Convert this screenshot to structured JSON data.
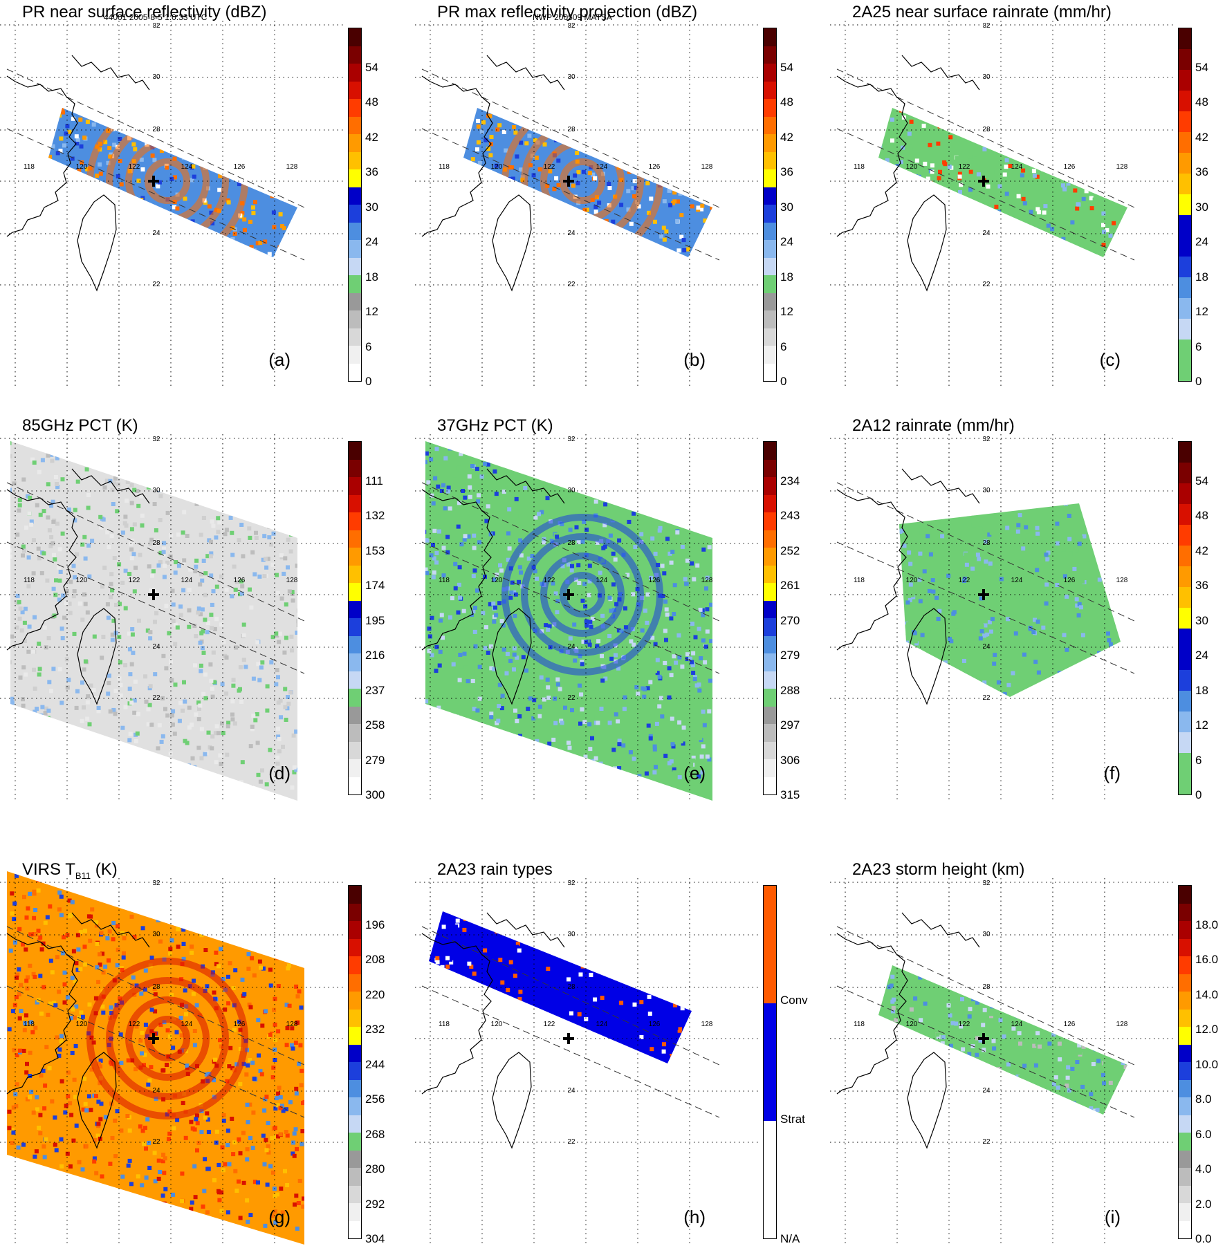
{
  "header": {
    "left": "44001 2005-8-5 1:0:33 UTC",
    "center": "NWP 200509 MATSA"
  },
  "map": {
    "lon_labels": [
      "118",
      "120",
      "122",
      "124",
      "126",
      "128"
    ],
    "lat_labels": [
      "32",
      "30",
      "28",
      "24",
      "22"
    ],
    "center_marker": "cross-icon"
  },
  "panels": [
    {
      "id": "a",
      "title": "PR near surface reflectivity (dBZ)",
      "label": "(a)",
      "ticks": [
        "0",
        "6",
        "12",
        "18",
        "24",
        "30",
        "36",
        "42",
        "48",
        "54"
      ],
      "colors": [
        "#ffffff",
        "#f0f0f0",
        "#d8d8d8",
        "#bcbcbc",
        "#999999",
        "#6fcf74",
        "#c6d8f4",
        "#8ab8ee",
        "#4d8ee0",
        "#1c3fdc",
        "#0000c8",
        "#ffff00",
        "#ffc000",
        "#ff9a00",
        "#ff6e00",
        "#ff3c00",
        "#d81000",
        "#aa0000",
        "#7a0000",
        "#4a0000"
      ]
    },
    {
      "id": "b",
      "title": "PR max reflectivity projection (dBZ)",
      "label": "(b)",
      "ticks": [
        "0",
        "6",
        "12",
        "18",
        "24",
        "30",
        "36",
        "42",
        "48",
        "54"
      ],
      "colors": [
        "#ffffff",
        "#f0f0f0",
        "#d8d8d8",
        "#bcbcbc",
        "#999999",
        "#6fcf74",
        "#c6d8f4",
        "#8ab8ee",
        "#4d8ee0",
        "#1c3fdc",
        "#0000c8",
        "#ffff00",
        "#ffc000",
        "#ff9a00",
        "#ff6e00",
        "#ff3c00",
        "#d81000",
        "#aa0000",
        "#7a0000",
        "#4a0000"
      ]
    },
    {
      "id": "c",
      "title": "2A25 near surface rainrate (mm/hr)",
      "label": "(c)",
      "ticks": [
        "0",
        "6",
        "12",
        "18",
        "24",
        "30",
        "36",
        "42",
        "48",
        "54"
      ],
      "colors": [
        "#6fcf74",
        "#6fcf74",
        "#c6d8f4",
        "#8ab8ee",
        "#4d8ee0",
        "#1c3fdc",
        "#0000c8",
        "#0000c8",
        "#ffff00",
        "#ffc000",
        "#ff9a00",
        "#ff6e00",
        "#ff3c00",
        "#d81000",
        "#aa0000",
        "#7a0000",
        "#4a0000"
      ]
    },
    {
      "id": "d",
      "title": "85GHz PCT (K)",
      "label": "(d)",
      "ticks": [
        "300",
        "279",
        "258",
        "237",
        "216",
        "195",
        "174",
        "153",
        "132",
        "111"
      ],
      "colors": [
        "#ffffff",
        "#f0f0f0",
        "#d8d8d8",
        "#bcbcbc",
        "#999999",
        "#6fcf74",
        "#c6d8f4",
        "#8ab8ee",
        "#4d8ee0",
        "#1c3fdc",
        "#0000c8",
        "#ffff00",
        "#ffc000",
        "#ff9a00",
        "#ff6e00",
        "#ff3c00",
        "#d81000",
        "#aa0000",
        "#7a0000",
        "#4a0000"
      ]
    },
    {
      "id": "e",
      "title": "37GHz PCT (K)",
      "label": "(e)",
      "ticks": [
        "315",
        "306",
        "297",
        "288",
        "279",
        "270",
        "261",
        "252",
        "243",
        "234"
      ],
      "colors": [
        "#ffffff",
        "#f0f0f0",
        "#d8d8d8",
        "#bcbcbc",
        "#999999",
        "#6fcf74",
        "#c6d8f4",
        "#8ab8ee",
        "#4d8ee0",
        "#1c3fdc",
        "#0000c8",
        "#ffff00",
        "#ffc000",
        "#ff9a00",
        "#ff6e00",
        "#ff3c00",
        "#d81000",
        "#aa0000",
        "#7a0000",
        "#4a0000"
      ]
    },
    {
      "id": "f",
      "title": "2A12 rainrate (mm/hr)",
      "label": "(f)",
      "ticks": [
        "0",
        "6",
        "12",
        "18",
        "24",
        "30",
        "36",
        "42",
        "48",
        "54"
      ],
      "colors": [
        "#6fcf74",
        "#6fcf74",
        "#c6d8f4",
        "#8ab8ee",
        "#4d8ee0",
        "#1c3fdc",
        "#0000c8",
        "#0000c8",
        "#ffff00",
        "#ffc000",
        "#ff9a00",
        "#ff6e00",
        "#ff3c00",
        "#d81000",
        "#aa0000",
        "#7a0000",
        "#4a0000"
      ]
    },
    {
      "id": "g",
      "title": "VIRS T",
      "title_sub": "B11",
      "title_unit": " (K)",
      "label": "(g)",
      "ticks": [
        "304",
        "292",
        "280",
        "268",
        "256",
        "244",
        "232",
        "220",
        "208",
        "196"
      ],
      "colors": [
        "#ffffff",
        "#f0f0f0",
        "#d8d8d8",
        "#bcbcbc",
        "#999999",
        "#6fcf74",
        "#c6d8f4",
        "#8ab8ee",
        "#4d8ee0",
        "#1c3fdc",
        "#0000c8",
        "#ffff00",
        "#ffc000",
        "#ff9a00",
        "#ff6e00",
        "#ff3c00",
        "#d81000",
        "#aa0000",
        "#7a0000",
        "#4a0000"
      ]
    },
    {
      "id": "h",
      "title": "2A23 rain types",
      "label": "(h)",
      "ticks": [
        "N/A",
        "Strat",
        "Conv"
      ],
      "colors": [
        "#ffffff",
        "#0000e6",
        "#ff5a00"
      ]
    },
    {
      "id": "i",
      "title": "2A23 storm height (km)",
      "label": "(i)",
      "ticks": [
        "0.0",
        "2.0",
        "4.0",
        "6.0",
        "8.0",
        "10.0",
        "12.0",
        "14.0",
        "16.0",
        "18.0"
      ],
      "colors": [
        "#ffffff",
        "#f0f0f0",
        "#d8d8d8",
        "#bcbcbc",
        "#999999",
        "#6fcf74",
        "#c6d8f4",
        "#8ab8ee",
        "#4d8ee0",
        "#1c3fdc",
        "#0000c8",
        "#ffff00",
        "#ffc000",
        "#ff9a00",
        "#ff6e00",
        "#ff3c00",
        "#d81000",
        "#aa0000",
        "#7a0000",
        "#4a0000"
      ]
    }
  ]
}
